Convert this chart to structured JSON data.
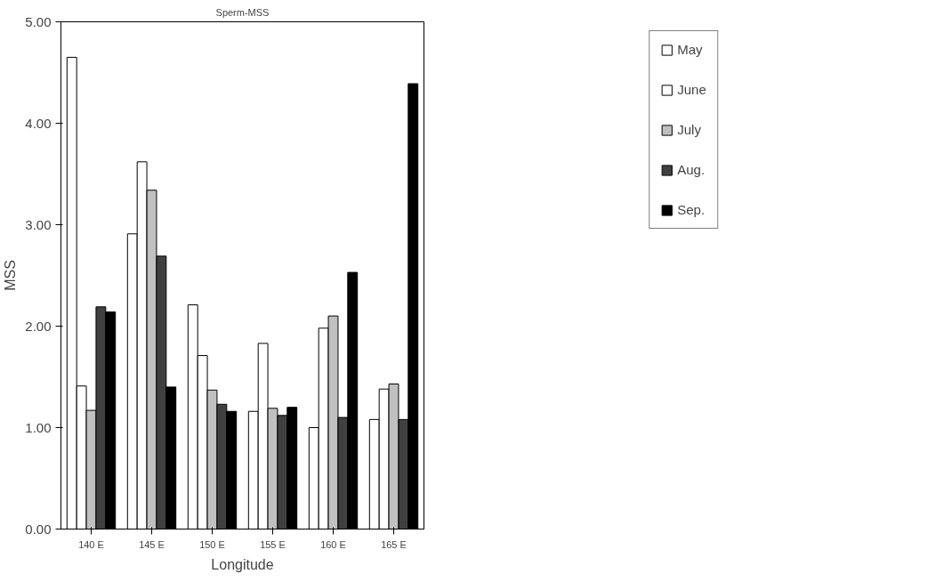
{
  "chart_data": {
    "type": "bar",
    "title": "Sperm-MSS",
    "xlabel": "Longitude",
    "ylabel": "MSS",
    "categories": [
      "140 E",
      "145 E",
      "150 E",
      "155 E",
      "160 E",
      "165 E"
    ],
    "series": [
      {
        "name": "May",
        "color": "#ffffff",
        "values": [
          4.65,
          2.91,
          2.21,
          1.16,
          1.0,
          1.08
        ]
      },
      {
        "name": "June",
        "color": "#ffffff",
        "values": [
          1.41,
          3.62,
          1.71,
          1.83,
          1.98,
          1.38
        ]
      },
      {
        "name": "July",
        "color": "#c0c0c0",
        "values": [
          1.17,
          3.34,
          1.37,
          1.19,
          2.1,
          1.43
        ]
      },
      {
        "name": "Aug.",
        "color": "#404040",
        "values": [
          2.19,
          2.69,
          1.23,
          1.12,
          1.1,
          1.08
        ]
      },
      {
        "name": "Sep.",
        "color": "#000000",
        "values": [
          2.14,
          1.4,
          1.16,
          1.2,
          2.53,
          4.39
        ]
      }
    ],
    "ylim": [
      0,
      5
    ],
    "yticks": [
      {
        "value": 0,
        "label": "0.00"
      },
      {
        "value": 1,
        "label": "1.00"
      },
      {
        "value": 2,
        "label": "2.00"
      },
      {
        "value": 3,
        "label": "3.00"
      },
      {
        "value": 4,
        "label": "4.00"
      },
      {
        "value": 5,
        "label": "5.00"
      }
    ],
    "grid": false,
    "legend": "right"
  }
}
